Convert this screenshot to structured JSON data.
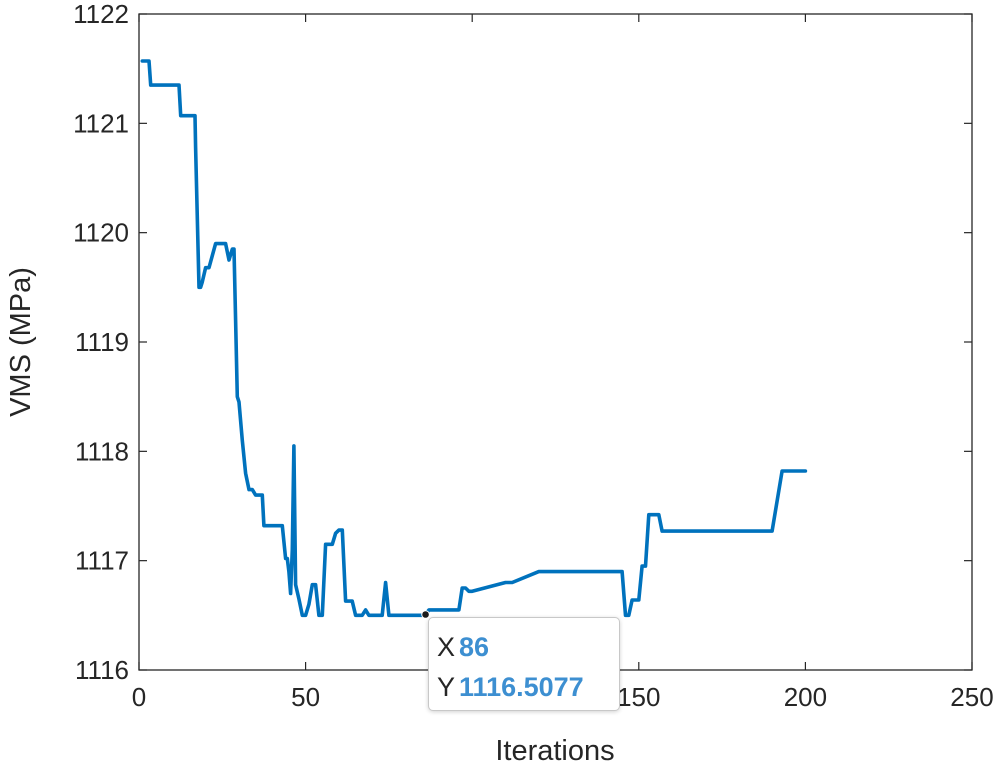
{
  "chart_data": {
    "type": "line",
    "title": "",
    "xlabel": "Iterations",
    "ylabel": "VMS (MPa)",
    "xlim": [
      0,
      250
    ],
    "ylim": [
      1116,
      1122
    ],
    "xticks": [
      0,
      50,
      100,
      150,
      200,
      250
    ],
    "yticks": [
      1116,
      1117,
      1118,
      1119,
      1120,
      1121,
      1122
    ],
    "grid": false,
    "line_color": "#0072BD",
    "series": [
      {
        "x": [
          1,
          3,
          3.5,
          12,
          12.5,
          16,
          16.8,
          17,
          18,
          18.5,
          19,
          20,
          21,
          23,
          24,
          26,
          27,
          28,
          28.5,
          29,
          29.5,
          30,
          31,
          32,
          33,
          34,
          35,
          37,
          37.5,
          43,
          44,
          44.5,
          45,
          45.5,
          46,
          46.5,
          47,
          48,
          49,
          50,
          51,
          52,
          53,
          54,
          54.5,
          55,
          56,
          57,
          58,
          59,
          60,
          61,
          62,
          63,
          64,
          65,
          66,
          67,
          68,
          69,
          70,
          71,
          72,
          73,
          74,
          75,
          76,
          77,
          78,
          79,
          80,
          81,
          82,
          83,
          84,
          85,
          86,
          87,
          88,
          89,
          90,
          91,
          92,
          93,
          94,
          95,
          96,
          97,
          98,
          99,
          100,
          110,
          112,
          120,
          125,
          130,
          140,
          145,
          146,
          147,
          148,
          149,
          150,
          151,
          152,
          153,
          154,
          155,
          156,
          157,
          158,
          159,
          160,
          165,
          170,
          180,
          190,
          193,
          194,
          195,
          200
        ],
        "y": [
          1121.57,
          1121.57,
          1121.35,
          1121.35,
          1121.07,
          1121.07,
          1121.07,
          1120.78,
          1119.5,
          1119.5,
          1119.55,
          1119.68,
          1119.68,
          1119.9,
          1119.9,
          1119.9,
          1119.75,
          1119.85,
          1119.85,
          1119.2,
          1118.5,
          1118.45,
          1118.1,
          1117.8,
          1117.65,
          1117.65,
          1117.6,
          1117.6,
          1117.32,
          1117.32,
          1117.02,
          1117.02,
          1116.9,
          1116.7,
          1117.1,
          1118.05,
          1116.78,
          1116.65,
          1116.5,
          1116.5,
          1116.6,
          1116.78,
          1116.78,
          1116.5,
          1116.5,
          1116.5,
          1117.15,
          1117.15,
          1117.15,
          1117.25,
          1117.28,
          1117.28,
          1116.63,
          1116.63,
          1116.63,
          1116.5,
          1116.5,
          1116.5,
          1116.55,
          1116.5,
          1116.5,
          1116.5,
          1116.5,
          1116.5,
          1116.8,
          1116.5,
          1116.5,
          1116.5,
          1116.5,
          1116.5,
          1116.5,
          1116.5,
          1116.5,
          1116.5,
          1116.5,
          1116.5,
          1116.5077,
          1116.55,
          1116.55,
          1116.55,
          1116.55,
          1116.55,
          1116.55,
          1116.55,
          1116.55,
          1116.55,
          1116.55,
          1116.75,
          1116.75,
          1116.72,
          1116.72,
          1116.8,
          1116.8,
          1116.9,
          1116.9,
          1116.9,
          1116.9,
          1116.9,
          1116.5,
          1116.5,
          1116.64,
          1116.64,
          1116.64,
          1116.95,
          1116.95,
          1117.42,
          1117.42,
          1117.42,
          1117.42,
          1117.27,
          1117.27,
          1117.27,
          1117.27,
          1117.27,
          1117.27,
          1117.27,
          1117.27,
          1117.82,
          1117.82,
          1117.82,
          1117.82
        ]
      }
    ],
    "datatip": {
      "x_label": "X",
      "x_value": "86",
      "y_label": "Y",
      "y_value": "1116.5077",
      "point": [
        86,
        1116.5077
      ]
    }
  }
}
